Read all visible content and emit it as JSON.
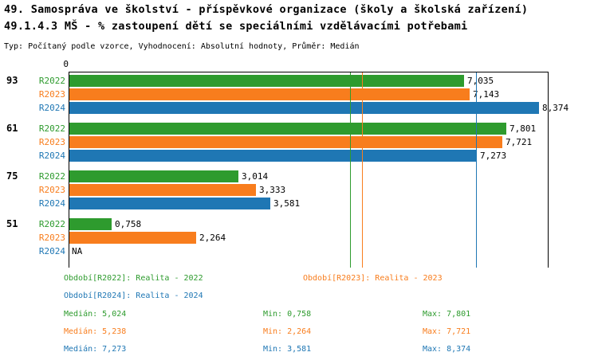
{
  "header": {
    "title1": "49. Samospráva ve školství - příspěvkové organizace (školy a školská zařízení)",
    "title2": "49.1.4.3 MŠ - % zastoupení dětí se speciálními vzdělávacími potřebami",
    "meta": "Typ: Počítaný podle vzorce, Vyhodnocení: Absolutní hodnoty, Průměr: Medián"
  },
  "chart_data": {
    "type": "bar",
    "orientation": "horizontal",
    "axis": {
      "origin_label": "0",
      "min": 0,
      "max_visible": 8.55,
      "grid": "off"
    },
    "series_colors": {
      "R2022": "#2e9b2e",
      "R2023": "#f87d1d",
      "R2024": "#1f77b4"
    },
    "groups": [
      {
        "label": "93",
        "bars": [
          {
            "series": "R2022",
            "value": 7.035,
            "display": "7,035"
          },
          {
            "series": "R2023",
            "value": 7.143,
            "display": "7,143"
          },
          {
            "series": "R2024",
            "value": 8.374,
            "display": "8,374"
          }
        ]
      },
      {
        "label": "61",
        "bars": [
          {
            "series": "R2022",
            "value": 7.801,
            "display": "7,801"
          },
          {
            "series": "R2023",
            "value": 7.721,
            "display": "7,721"
          },
          {
            "series": "R2024",
            "value": 7.273,
            "display": "7,273"
          }
        ]
      },
      {
        "label": "75",
        "bars": [
          {
            "series": "R2022",
            "value": 3.014,
            "display": "3,014"
          },
          {
            "series": "R2023",
            "value": 3.333,
            "display": "3,333"
          },
          {
            "series": "R2024",
            "value": 3.581,
            "display": "3,581"
          }
        ]
      },
      {
        "label": "51",
        "bars": [
          {
            "series": "R2022",
            "value": 0.758,
            "display": "0,758"
          },
          {
            "series": "R2023",
            "value": 2.264,
            "display": "2,264"
          },
          {
            "series": "R2024",
            "value": null,
            "display": "NA"
          }
        ]
      }
    ],
    "median_lines": [
      {
        "series": "R2022",
        "value": 5.024
      },
      {
        "series": "R2023",
        "value": 5.238
      },
      {
        "series": "R2024",
        "value": 7.273
      }
    ]
  },
  "legend": [
    {
      "series": "R2022",
      "label": "Období[R2022]: Realita - 2022"
    },
    {
      "series": "R2023",
      "label": "Období[R2023]: Realita - 2023"
    },
    {
      "series": "R2024",
      "label": "Období[R2024]: Realita - 2024"
    }
  ],
  "stats": [
    {
      "series": "R2022",
      "median": "Medián: 5,024",
      "min": "Min: 0,758",
      "max": "Max: 7,801"
    },
    {
      "series": "R2023",
      "median": "Medián: 5,238",
      "min": "Min: 2,264",
      "max": "Max: 7,721"
    },
    {
      "series": "R2024",
      "median": "Medián: 7,273",
      "min": "Min: 3,581",
      "max": "Max: 8,374"
    }
  ]
}
